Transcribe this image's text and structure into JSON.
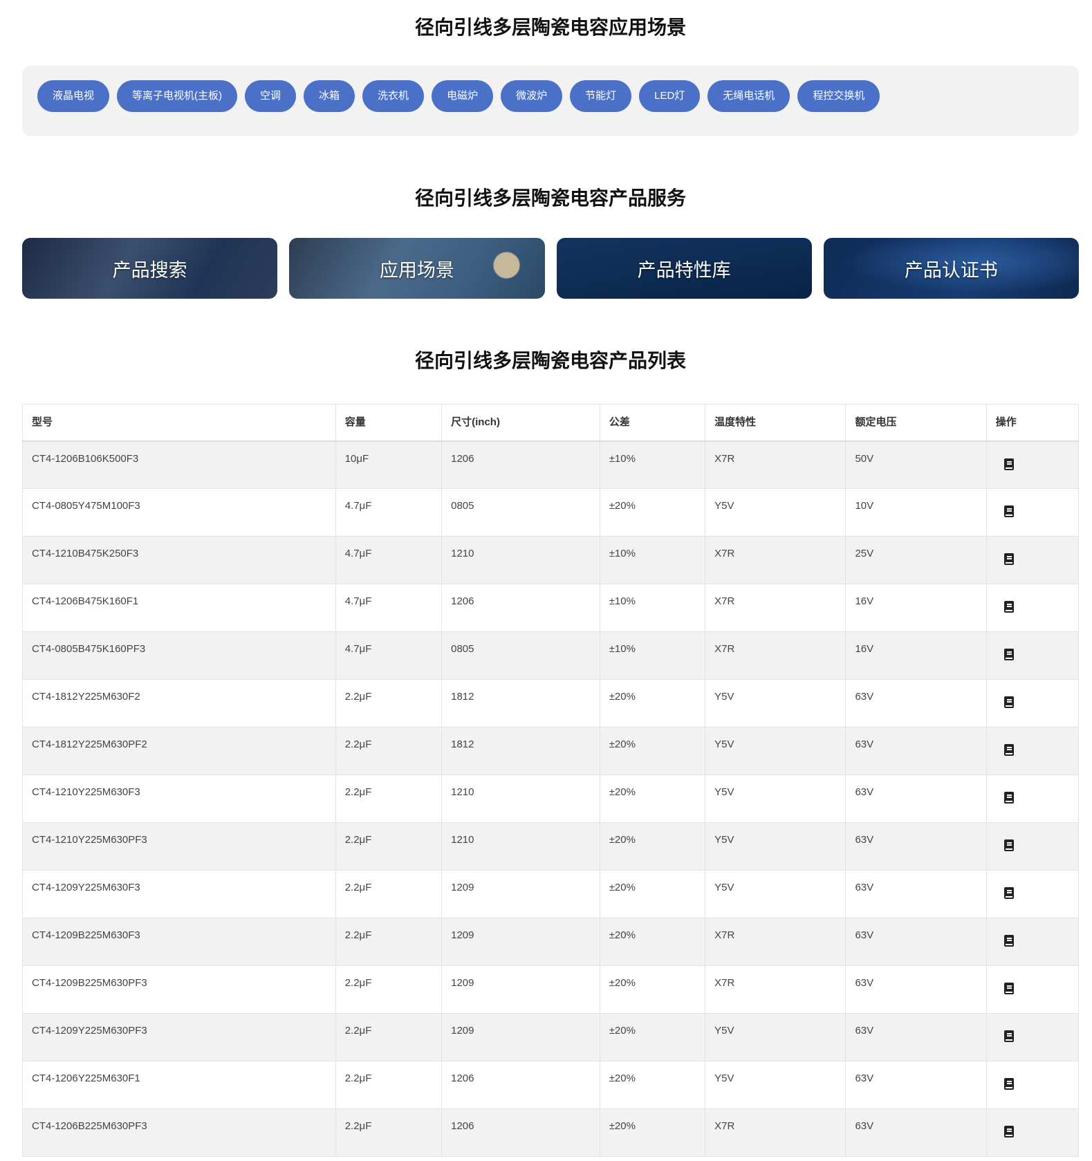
{
  "sections": {
    "applications_title": "径向引线多层陶瓷电容应用场景",
    "services_title": "径向引线多层陶瓷电容产品服务",
    "list_title": "径向引线多层陶瓷电容产品列表"
  },
  "tags": [
    "液晶电视",
    "等离子电视机(主板)",
    "空调",
    "冰箱",
    "洗衣机",
    "电磁炉",
    "微波炉",
    "节能灯",
    "LED灯",
    "无绳电话机",
    "程控交换机"
  ],
  "services": [
    "产品搜索",
    "应用场景",
    "产品特性库",
    "产品认证书"
  ],
  "table": {
    "headers": [
      "型号",
      "容量",
      "尺寸(inch)",
      "公差",
      "温度特性",
      "额定电压",
      "操作"
    ],
    "action_icon": "book-icon",
    "rows": [
      [
        "CT4-1206B106K500F3",
        "10μF",
        "1206",
        "±10%",
        "X7R",
        "50V"
      ],
      [
        "CT4-0805Y475M100F3",
        "4.7μF",
        "0805",
        "±20%",
        "Y5V",
        "10V"
      ],
      [
        "CT4-1210B475K250F3",
        "4.7μF",
        "1210",
        "±10%",
        "X7R",
        "25V"
      ],
      [
        "CT4-1206B475K160F1",
        "4.7μF",
        "1206",
        "±10%",
        "X7R",
        "16V"
      ],
      [
        "CT4-0805B475K160PF3",
        "4.7μF",
        "0805",
        "±10%",
        "X7R",
        "16V"
      ],
      [
        "CT4-1812Y225M630F2",
        "2.2μF",
        "1812",
        "±20%",
        "Y5V",
        "63V"
      ],
      [
        "CT4-1812Y225M630PF2",
        "2.2μF",
        "1812",
        "±20%",
        "Y5V",
        "63V"
      ],
      [
        "CT4-1210Y225M630F3",
        "2.2μF",
        "1210",
        "±20%",
        "Y5V",
        "63V"
      ],
      [
        "CT4-1210Y225M630PF3",
        "2.2μF",
        "1210",
        "±20%",
        "Y5V",
        "63V"
      ],
      [
        "CT4-1209Y225M630F3",
        "2.2μF",
        "1209",
        "±20%",
        "Y5V",
        "63V"
      ],
      [
        "CT4-1209B225M630F3",
        "2.2μF",
        "1209",
        "±20%",
        "X7R",
        "63V"
      ],
      [
        "CT4-1209B225M630PF3",
        "2.2μF",
        "1209",
        "±20%",
        "X7R",
        "63V"
      ],
      [
        "CT4-1209Y225M630PF3",
        "2.2μF",
        "1209",
        "±20%",
        "Y5V",
        "63V"
      ],
      [
        "CT4-1206Y225M630F1",
        "2.2μF",
        "1206",
        "±20%",
        "Y5V",
        "63V"
      ],
      [
        "CT4-1206B225M630PF3",
        "2.2μF",
        "1206",
        "±20%",
        "X7R",
        "63V"
      ]
    ]
  },
  "colors": {
    "tag": "#4a70c7",
    "panel": "#f2f2f2"
  }
}
